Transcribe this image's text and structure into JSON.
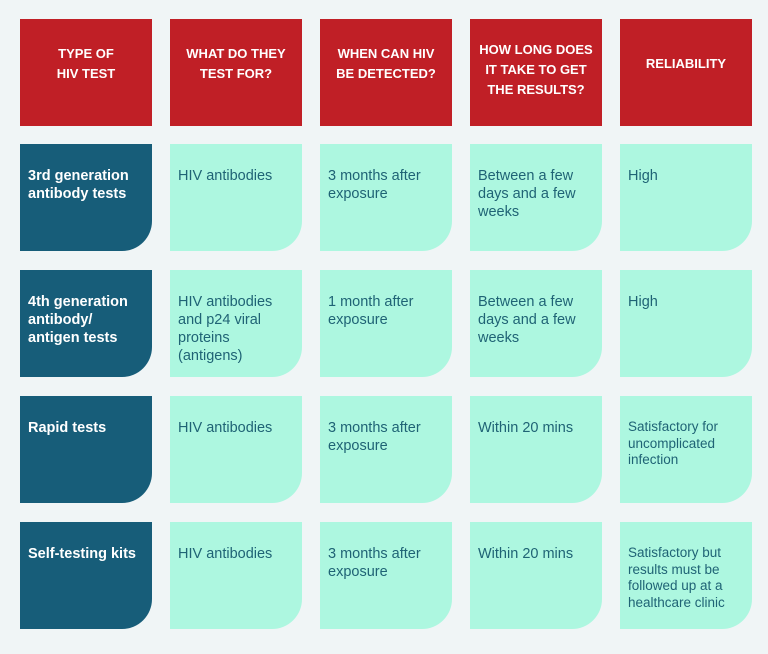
{
  "colors": {
    "background": "#f0f5f6",
    "header": "#c01f26",
    "type_cell": "#175d79",
    "value_cell": "#adf7e0",
    "value_text": "#1f6375"
  },
  "table": {
    "headers": [
      "TYPE OF\nHIV TEST",
      "WHAT DO THEY\nTEST FOR?",
      "WHEN CAN HIV\nBE DETECTED?",
      "HOW LONG DOES\nIT TAKE TO GET\nTHE RESULTS?",
      "RELIABILITY"
    ],
    "rows": [
      {
        "type": "3rd generation\nantibody tests",
        "tests_for": "HIV antibodies",
        "detected": "3 months after\nexposure",
        "results_time": "Between a few\ndays and a few\nweeks",
        "reliability": "High"
      },
      {
        "type": "4th generation\nantibody/\nantigen tests",
        "tests_for": "HIV antibodies\nand p24 viral\nproteins\n(antigens)",
        "detected": "1 month after\nexposure",
        "results_time": "Between a few\ndays and a few\nweeks",
        "reliability": "High"
      },
      {
        "type": "Rapid tests",
        "tests_for": "HIV antibodies",
        "detected": "3 months after\nexposure",
        "results_time": "Within 20 mins",
        "reliability": "Satisfactory for\nuncomplicated\ninfection"
      },
      {
        "type": "Self-testing kits",
        "tests_for": "HIV antibodies",
        "detected": "3 months after\nexposure",
        "results_time": "Within 20 mins",
        "reliability": "Satisfactory but\nresults must be\nfollowed up at a\nhealthcare clinic"
      }
    ]
  }
}
